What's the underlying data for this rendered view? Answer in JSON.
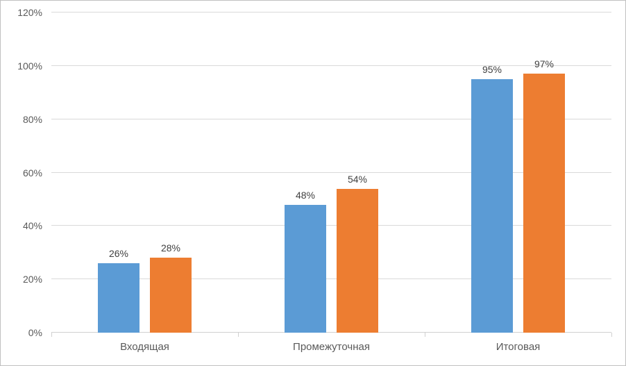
{
  "chart_data": {
    "type": "bar",
    "title": "",
    "categories": [
      "Входящая",
      "Промежуточная",
      "Итоговая"
    ],
    "series": [
      {
        "color": "#5B9BD5",
        "values": [
          26,
          48,
          95
        ],
        "labels": [
          "26%",
          "48%",
          "95%"
        ]
      },
      {
        "color": "#ED7D31",
        "values": [
          28,
          54,
          97
        ],
        "labels": [
          "28%",
          "54%",
          "97%"
        ]
      }
    ],
    "y_ticks": [
      {
        "value": 0,
        "label": "0%"
      },
      {
        "value": 20,
        "label": "20%"
      },
      {
        "value": 40,
        "label": "40%"
      },
      {
        "value": 60,
        "label": "60%"
      },
      {
        "value": 80,
        "label": "80%"
      },
      {
        "value": 100,
        "label": "100%"
      },
      {
        "value": 120,
        "label": "120%"
      }
    ],
    "ylim": [
      0,
      120
    ],
    "grid": true,
    "legend": false,
    "colors": {
      "bar_blue": "#5B9BD5",
      "bar_orange": "#ED7D31",
      "gridline": "#D9D9D9",
      "axis_line": "#D0D0D0",
      "axis_label": "#595959",
      "data_label": "#404040",
      "frame_border": "#C0C0C0",
      "background": "#FFFFFF"
    }
  }
}
